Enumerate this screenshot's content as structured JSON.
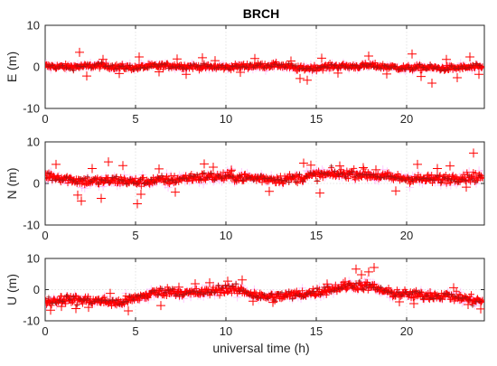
{
  "chart_data": {
    "type": "scatter",
    "title": "BRCH",
    "xlabel": "universal time (h)",
    "xlim": [
      0,
      24.3
    ],
    "xticks": [
      0,
      5,
      10,
      15,
      20
    ],
    "marker": "+",
    "marker_color": "#ff0000",
    "halo_color": "#ff66ff",
    "dark_marker_color": "#8b1a1a",
    "grid": true,
    "panels": [
      {
        "ylabel": "E (m)",
        "ylim": [
          -10,
          10
        ],
        "yticks": [
          -10,
          0,
          10
        ],
        "trend": {
          "x": [
            0,
            1,
            2,
            3,
            4,
            5,
            6,
            7,
            8,
            9,
            10,
            11,
            12,
            13,
            14,
            15,
            16,
            17,
            18,
            19,
            20,
            21,
            22,
            23,
            24.2
          ],
          "y": [
            0.2,
            0.0,
            0.1,
            0.3,
            0.0,
            -0.2,
            0.2,
            0.3,
            0.1,
            0.0,
            -0.1,
            0.2,
            0.3,
            0.4,
            -0.4,
            -0.2,
            0.2,
            0.1,
            0.3,
            0.0,
            -0.3,
            -0.1,
            -0.4,
            -0.2,
            0.0
          ]
        },
        "noise": 0.6,
        "outliers": {
          "x": [
            1.9,
            2.3,
            3.2,
            4.1,
            5.2,
            6.3,
            7.3,
            7.8,
            8.7,
            9.4,
            10.8,
            11.6,
            13.6,
            14.1,
            14.5,
            15.3,
            16.2,
            17.9,
            18.9,
            20.3,
            20.8,
            21.4,
            22.2,
            22.8,
            23.5,
            24.0
          ],
          "y": [
            3.5,
            -2.2,
            1.8,
            -1.6,
            2.4,
            -1.2,
            1.9,
            -1.8,
            2.2,
            1.5,
            -1.3,
            2.0,
            1.4,
            -2.8,
            -3.2,
            2.1,
            -1.5,
            2.6,
            -1.7,
            3.1,
            -2.3,
            -3.9,
            1.8,
            -2.6,
            2.4,
            -1.8
          ]
        }
      },
      {
        "ylabel": "N (m)",
        "ylim": [
          -10,
          10
        ],
        "yticks": [
          -10,
          0,
          10
        ],
        "trend": {
          "x": [
            0,
            1,
            2,
            3,
            4,
            5,
            6,
            7,
            8,
            9,
            10,
            11,
            12,
            13,
            14,
            15,
            16,
            17,
            18,
            19,
            20,
            21,
            22,
            23,
            24.2
          ],
          "y": [
            2.0,
            1.3,
            0.6,
            0.5,
            0.8,
            0.3,
            0.7,
            0.8,
            1.4,
            1.6,
            1.6,
            1.4,
            1.2,
            1.0,
            1.3,
            2.0,
            2.2,
            2.4,
            2.0,
            1.5,
            1.2,
            1.0,
            1.1,
            1.5,
            1.6
          ]
        },
        "noise": 1.0,
        "outliers": {
          "x": [
            0.6,
            1.8,
            2.0,
            2.6,
            3.1,
            3.5,
            4.3,
            5.1,
            5.3,
            6.3,
            7.2,
            8.8,
            9.3,
            10.3,
            12.4,
            14.3,
            14.7,
            15.2,
            16.3,
            17.6,
            18.3,
            19.4,
            20.6,
            21.7,
            22.4,
            23.3,
            23.7
          ],
          "y": [
            4.6,
            -2.8,
            -4.2,
            3.6,
            -3.6,
            5.2,
            4.3,
            -4.9,
            -2.6,
            3.5,
            -2.1,
            4.7,
            3.9,
            3.2,
            -1.9,
            4.9,
            4.4,
            -2.3,
            4.2,
            3.8,
            3.3,
            -1.8,
            4.6,
            3.6,
            4.2,
            -0.9,
            7.3
          ]
        }
      },
      {
        "ylabel": "U (m)",
        "ylim": [
          -10,
          10
        ],
        "yticks": [
          -10,
          0,
          10
        ],
        "trend": {
          "x": [
            0,
            1,
            2,
            3,
            4,
            5,
            6,
            7,
            8,
            9,
            10,
            11,
            12,
            13,
            14,
            15,
            16,
            17,
            18,
            19,
            20,
            21,
            22,
            23,
            24.2
          ],
          "y": [
            -4.0,
            -3.0,
            -3.3,
            -3.6,
            -4.3,
            -2.8,
            -1.0,
            -0.5,
            -1.2,
            -0.8,
            0.3,
            -0.5,
            -2.3,
            -2.2,
            -1.5,
            -0.8,
            0.4,
            1.4,
            1.0,
            -1.0,
            -1.5,
            -2.0,
            -1.8,
            -2.6,
            -3.8
          ]
        },
        "noise": 1.3,
        "outliers": {
          "x": [
            0.3,
            0.9,
            1.7,
            2.4,
            3.6,
            4.6,
            5.6,
            6.4,
            7.4,
            8.3,
            9.1,
            10.1,
            10.9,
            11.5,
            12.6,
            13.3,
            15.6,
            16.6,
            17.2,
            17.5,
            17.9,
            18.2,
            19.6,
            20.4,
            21.3,
            22.6,
            23.4,
            24.1
          ],
          "y": [
            -6.6,
            -5.4,
            -6.1,
            -5.7,
            -1.2,
            -6.8,
            -2.4,
            -5.1,
            0.8,
            1.9,
            2.2,
            2.7,
            3.1,
            -3.7,
            -4.1,
            -1.4,
            1.8,
            2.5,
            6.6,
            4.8,
            5.7,
            7.1,
            -3.9,
            -4.5,
            -1.0,
            0.6,
            -4.8,
            -6.2
          ]
        }
      }
    ]
  }
}
